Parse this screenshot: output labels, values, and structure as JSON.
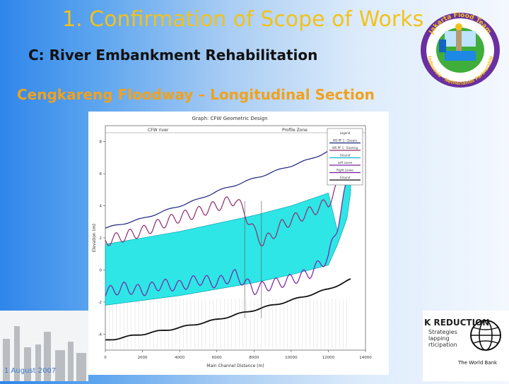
{
  "slide": {
    "title": "1. Confirmation of Scope of Works",
    "subtitle": "C: River Embankment Rehabilitation",
    "section": "Cengkareng Floodway – Longitudinal Section",
    "date": "1 August 2007",
    "colors": {
      "title": "#f2c21a",
      "section": "#f0a21e",
      "background_left": "#2f86ea"
    }
  },
  "logo": {
    "text": "Jakarta Flood Team",
    "sub_text": "Indonesia · Netherlands Partnership"
  },
  "world_bank": {
    "label": "The World Bank",
    "heading": "K REDUCTION",
    "lines": [
      "Strategies",
      "lapping",
      "rticipation"
    ]
  },
  "chart_data": {
    "type": "line",
    "title": "Graph: CFW Geometric Design",
    "header_segments": [
      "CFW river",
      "Profile Zone"
    ],
    "ylabel": "Elevation (m)",
    "xlabel": "Main Channel Distance (m)",
    "x_ticks": [
      0,
      2000,
      4000,
      6000,
      8000,
      10000,
      12000,
      14000
    ],
    "x_tick_labels": [
      "0",
      "2000",
      "4000",
      "6000",
      "8000",
      "10000",
      "12000",
      "14000"
    ],
    "y_ticks": [
      -4,
      -2,
      0,
      2,
      4,
      6,
      8
    ],
    "ylim": [
      -5,
      9
    ],
    "xlim": [
      0,
      14000
    ],
    "legend": [
      "Legend",
      "WS PF 1 - Desain",
      "WS PF 1 - Existing",
      "Ground",
      "Left Levee",
      "Right Levee",
      "Ground"
    ],
    "series": [
      {
        "name": "WS PF 1 - Desain",
        "color": "#1a237e",
        "x": [
          0,
          1000,
          2000,
          3000,
          4000,
          5000,
          6000,
          7000,
          8000,
          9000,
          10000,
          11000,
          12000,
          12600,
          13200
        ],
        "values": [
          2.6,
          2.9,
          3.2,
          3.6,
          4.0,
          4.4,
          4.9,
          5.3,
          5.7,
          6.1,
          6.5,
          6.9,
          7.4,
          7.9,
          8.3
        ]
      },
      {
        "name": "WS PF 1 - Existing",
        "color": "#8e2a6e",
        "x": [
          0,
          1000,
          2000,
          3000,
          4000,
          5000,
          6000,
          7000,
          7500,
          8000,
          8500,
          9000,
          9500,
          10000,
          11000,
          12000,
          12500,
          13000,
          13200
        ],
        "values": [
          1.8,
          2.1,
          2.4,
          2.9,
          3.3,
          3.6,
          4.0,
          4.4,
          3.6,
          2.4,
          1.7,
          2.2,
          2.8,
          3.1,
          3.6,
          4.2,
          5.2,
          6.8,
          7.8
        ]
      },
      {
        "name": "Left Levee",
        "color": "#00bcd4",
        "x": [
          0,
          2000,
          4000,
          6000,
          8000,
          10000,
          12000,
          12500,
          13000,
          13200
        ],
        "values": [
          1.6,
          2.0,
          2.4,
          2.9,
          3.4,
          4.0,
          4.8,
          2.4,
          6.0,
          7.2
        ]
      },
      {
        "name": "Right Levee",
        "color": "#00bcd4",
        "x": [
          0,
          2000,
          4000,
          6000,
          8000,
          10000,
          12000,
          12500,
          13000,
          13200
        ],
        "values": [
          -2.2,
          -1.9,
          -1.6,
          -1.2,
          -0.8,
          -0.3,
          0.3,
          1.6,
          3.2,
          4.8
        ]
      },
      {
        "name": "Ground",
        "color": "#7b1fa2",
        "x": [
          0,
          1000,
          2000,
          3000,
          4000,
          5000,
          6000,
          7000,
          8000,
          9000,
          10000,
          11000,
          12000,
          12500,
          13200
        ],
        "values": [
          -1.4,
          -1.1,
          -1.3,
          -0.9,
          -1.0,
          -0.6,
          -0.8,
          -0.3,
          -1.2,
          -0.9,
          -0.6,
          -0.2,
          0.8,
          2.8,
          6.4
        ]
      },
      {
        "name": "Ground",
        "color": "#111111",
        "x": [
          0,
          2000,
          4000,
          6000,
          8000,
          10000,
          12000,
          13200
        ],
        "values": [
          -4.4,
          -4.0,
          -3.6,
          -3.1,
          -2.5,
          -1.9,
          -1.2,
          -0.6
        ]
      }
    ]
  }
}
